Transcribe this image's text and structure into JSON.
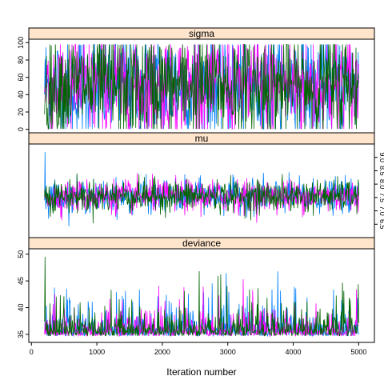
{
  "chart_data": {
    "type": "line",
    "xlabel": "Iteration number",
    "x_ticks": [
      0,
      1000,
      2000,
      3000,
      4000,
      5000
    ],
    "x_range": [
      201,
      5000
    ],
    "xlim": [
      -40,
      5240
    ],
    "series_colors": [
      "#0080ff",
      "#ff00ff",
      "#006400"
    ],
    "panels": [
      {
        "strip": "sigma",
        "y_ticks": [
          0,
          20,
          40,
          60,
          80,
          100
        ],
        "ylim": [
          -4,
          104
        ],
        "tick_side": "left",
        "trace": {
          "min": 0.5,
          "max": 98,
          "center": 50,
          "spread": 32
        }
      },
      {
        "strip": "mu",
        "y_ticks": [
          6.5,
          7.0,
          7.5,
          8.0,
          8.5,
          9.0
        ],
        "ylim": [
          6.0,
          9.5
        ],
        "tick_side": "right",
        "trace": {
          "min": 6.3,
          "max": 9.2,
          "center": 7.55,
          "spread": 0.3
        }
      },
      {
        "strip": "deviance",
        "y_ticks": [
          35,
          40,
          45,
          50
        ],
        "ylim": [
          33.5,
          51
        ],
        "tick_side": "left",
        "trace": {
          "min": 34.6,
          "max": 49.5,
          "floor": 34.7,
          "skew": true
        }
      }
    ]
  }
}
